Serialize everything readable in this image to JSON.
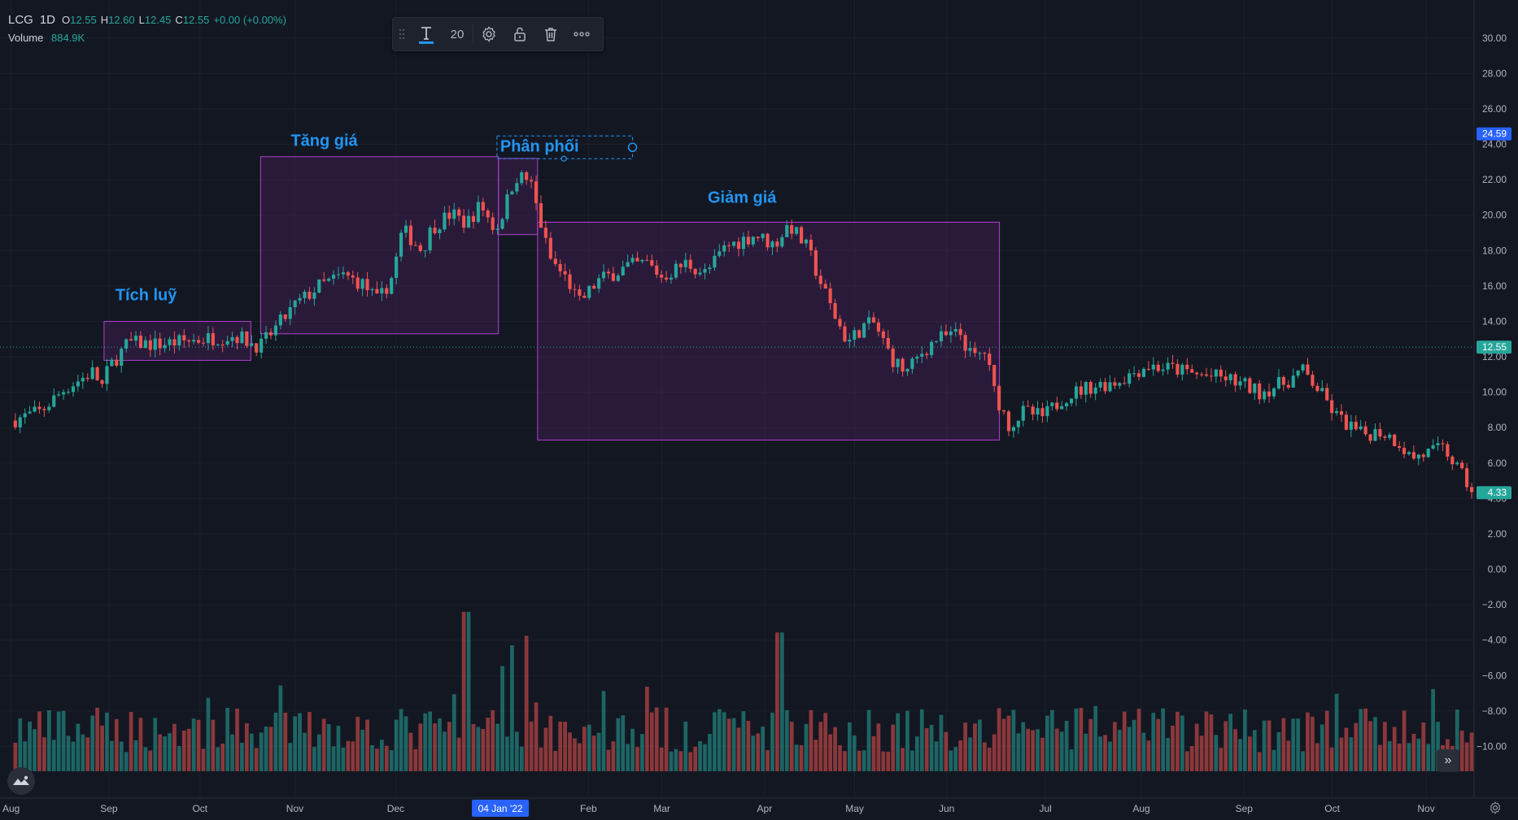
{
  "legend": {
    "symbol": "LCG",
    "interval": "1D",
    "ohlc": [
      {
        "k": "O",
        "v": "12.55"
      },
      {
        "k": "H",
        "v": "12.60"
      },
      {
        "k": "L",
        "v": "12.45"
      },
      {
        "k": "C",
        "v": "12.55"
      }
    ],
    "change": "+0.00 (+0.00%)",
    "volume_label": "Volume",
    "volume_value": "884.9K"
  },
  "toolbar": {
    "font_size": "20"
  },
  "colors": {
    "background": "#131722",
    "grid": "#1c202b",
    "up": "#26a69a",
    "down": "#ef5350",
    "zone_fill": "#9c27b0",
    "annotation": "#2196f3",
    "axis_text": "#b2b5be"
  },
  "chart_data": {
    "type": "candlestick",
    "y_axis_ticks": [
      "30.00",
      "28.00",
      "26.00",
      "24.00",
      "22.00",
      "20.00",
      "18.00",
      "16.00",
      "14.00",
      "12.00",
      "10.00",
      "8.00",
      "6.00",
      "4.00",
      "2.00",
      "0.00",
      "−2.00",
      "−4.00",
      "−6.00",
      "−8.00",
      "−10.00"
    ],
    "y_axis_range": [
      -11.4,
      31
    ],
    "price_badges": [
      {
        "label": "24.59",
        "value": 24.59,
        "color": "#2962ff"
      },
      {
        "label": "12.55",
        "value": 12.55,
        "color": "#26a69a"
      },
      {
        "label": "4.33",
        "value": 4.33,
        "color": "#26a69a"
      }
    ],
    "x_axis_labels": [
      {
        "label": "Aug",
        "t": 0.0
      },
      {
        "label": "Sep",
        "t": 1.0
      },
      {
        "label": "Oct",
        "t": 1.93
      },
      {
        "label": "Nov",
        "t": 2.9
      },
      {
        "label": "Dec",
        "t": 3.93
      },
      {
        "label": "Feb",
        "t": 5.9
      },
      {
        "label": "Mar",
        "t": 6.65
      },
      {
        "label": "Apr",
        "t": 7.7
      },
      {
        "label": "May",
        "t": 8.62
      },
      {
        "label": "Jun",
        "t": 9.56
      },
      {
        "label": "Jul",
        "t": 10.57
      },
      {
        "label": "Aug",
        "t": 11.55
      },
      {
        "label": "Sep",
        "t": 12.6
      },
      {
        "label": "Oct",
        "t": 13.5
      },
      {
        "label": "Nov",
        "t": 14.46
      }
    ],
    "x_highlight": {
      "label": "04 Jan '22",
      "t": 5.0
    },
    "t_range": [
      -0.08,
      14.95
    ],
    "price_path": [
      [
        0.0,
        8.4
      ],
      [
        0.3,
        8.9
      ],
      [
        0.55,
        10.2
      ],
      [
        0.85,
        11.2
      ],
      [
        0.92,
        10.2
      ],
      [
        1.0,
        11.4
      ],
      [
        1.2,
        12.8
      ],
      [
        1.5,
        12.7
      ],
      [
        1.8,
        12.9
      ],
      [
        2.1,
        13.1
      ],
      [
        2.3,
        13.2
      ],
      [
        2.45,
        12.8
      ],
      [
        2.55,
        12.6
      ],
      [
        2.7,
        13.6
      ],
      [
        2.9,
        14.9
      ],
      [
        3.15,
        16.0
      ],
      [
        3.4,
        16.6
      ],
      [
        3.6,
        16.1
      ],
      [
        3.75,
        15.1
      ],
      [
        3.9,
        16.6
      ],
      [
        4.0,
        19.2
      ],
      [
        4.2,
        18.0
      ],
      [
        4.3,
        19.3
      ],
      [
        4.5,
        20.1
      ],
      [
        4.65,
        19.5
      ],
      [
        4.8,
        20.6
      ],
      [
        4.95,
        19.1
      ],
      [
        5.05,
        20.5
      ],
      [
        5.15,
        22.2
      ],
      [
        5.3,
        22.0
      ],
      [
        5.4,
        19.8
      ],
      [
        5.5,
        17.6
      ],
      [
        5.7,
        16.2
      ],
      [
        5.8,
        15.0
      ],
      [
        6.0,
        16.3
      ],
      [
        6.3,
        17.1
      ],
      [
        6.5,
        17.3
      ],
      [
        6.65,
        16.5
      ],
      [
        6.9,
        17.3
      ],
      [
        7.1,
        16.7
      ],
      [
        7.3,
        18.2
      ],
      [
        7.6,
        18.9
      ],
      [
        7.8,
        18.3
      ],
      [
        7.95,
        19.5
      ],
      [
        8.15,
        18.0
      ],
      [
        8.25,
        16.5
      ],
      [
        8.4,
        14.5
      ],
      [
        8.55,
        12.8
      ],
      [
        8.7,
        13.7
      ],
      [
        8.82,
        13.9
      ],
      [
        9.0,
        11.9
      ],
      [
        9.15,
        11.1
      ],
      [
        9.3,
        12.2
      ],
      [
        9.45,
        13.0
      ],
      [
        9.7,
        13.3
      ],
      [
        9.82,
        11.9
      ],
      [
        9.95,
        12.3
      ],
      [
        10.05,
        10.0
      ],
      [
        10.2,
        8.1
      ],
      [
        10.35,
        8.9
      ],
      [
        10.55,
        8.6
      ],
      [
        10.75,
        9.7
      ],
      [
        11.0,
        10.3
      ],
      [
        11.3,
        10.6
      ],
      [
        11.6,
        11.5
      ],
      [
        11.9,
        11.3
      ],
      [
        12.1,
        11.0
      ],
      [
        12.4,
        10.8
      ],
      [
        12.6,
        10.4
      ],
      [
        12.75,
        10.0
      ],
      [
        13.0,
        10.5
      ],
      [
        13.2,
        11.2
      ],
      [
        13.35,
        10.2
      ],
      [
        13.55,
        8.6
      ],
      [
        13.8,
        7.6
      ],
      [
        14.0,
        7.8
      ],
      [
        14.2,
        7.1
      ],
      [
        14.3,
        6.3
      ],
      [
        14.5,
        6.6
      ],
      [
        14.65,
        6.8
      ],
      [
        14.8,
        5.5
      ],
      [
        14.92,
        4.5
      ]
    ],
    "volume_spikes": [
      {
        "t": 4.65,
        "level": 1.0
      },
      {
        "t": 5.12,
        "level": 0.79
      },
      {
        "t": 5.25,
        "level": 0.85
      },
      {
        "t": 7.85,
        "level": 0.87
      },
      {
        "t": 5.02,
        "level": 0.66
      }
    ],
    "zones": [
      {
        "t0": 0.95,
        "t1": 2.45,
        "p_top": 14.0,
        "p_bottom": 11.8
      },
      {
        "t0": 2.55,
        "t1": 4.98,
        "p_top": 23.3,
        "p_bottom": 13.3
      },
      {
        "t0": 4.98,
        "t1": 5.38,
        "p_top": 23.2,
        "p_bottom": 18.9
      },
      {
        "t0": 5.38,
        "t1": 10.1,
        "p_top": 19.6,
        "p_bottom": 7.3
      }
    ],
    "annotations": [
      {
        "text": "Tích luỹ",
        "t": 1.38,
        "price": 15.2
      },
      {
        "text": "Tăng giá",
        "t": 3.2,
        "price": 23.9
      },
      {
        "text": "Phân phối",
        "t": 5.4,
        "price": 23.6,
        "selected": true
      },
      {
        "text": "Giảm giá",
        "t": 7.47,
        "price": 20.7
      }
    ],
    "last_price_line": 12.55
  }
}
